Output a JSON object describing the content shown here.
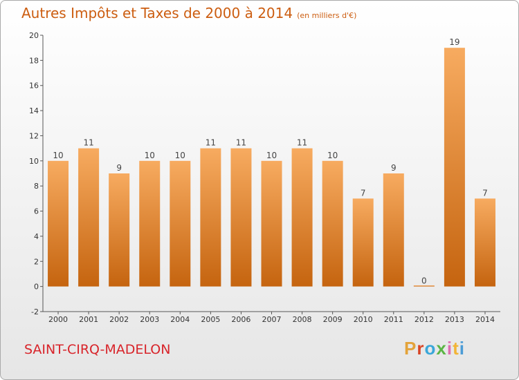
{
  "title": "Autres Impôts et Taxes de 2000 à 2014",
  "subtitle": "(en milliers d'€)",
  "commune": "SAINT-CIRQ-MADELON",
  "logo": {
    "letters": [
      "P",
      "r",
      "o",
      "x",
      "i",
      "t",
      "i"
    ],
    "colors": [
      "#e3a33a",
      "#d84526",
      "#3aa7d9",
      "#5bb545",
      "#e06db0",
      "#f2b437",
      "#4c9cd6"
    ]
  },
  "colors": {
    "bar": "#f0902f",
    "bar_light": "#f7ab60",
    "bar_dark": "#c5640f",
    "text": "#cc5d10",
    "commune": "#d8242a"
  },
  "chart_data": {
    "type": "bar",
    "categories": [
      "2000",
      "2001",
      "2002",
      "2003",
      "2004",
      "2005",
      "2006",
      "2007",
      "2008",
      "2009",
      "2010",
      "2011",
      "2012",
      "2013",
      "2014"
    ],
    "values": [
      10,
      11,
      9,
      10,
      10,
      11,
      11,
      10,
      11,
      10,
      7,
      9,
      0,
      19,
      7
    ],
    "ylim": [
      -2,
      20
    ],
    "yticks": [
      -2,
      0,
      2,
      4,
      6,
      8,
      10,
      12,
      14,
      16,
      18,
      20
    ],
    "grid": false
  }
}
